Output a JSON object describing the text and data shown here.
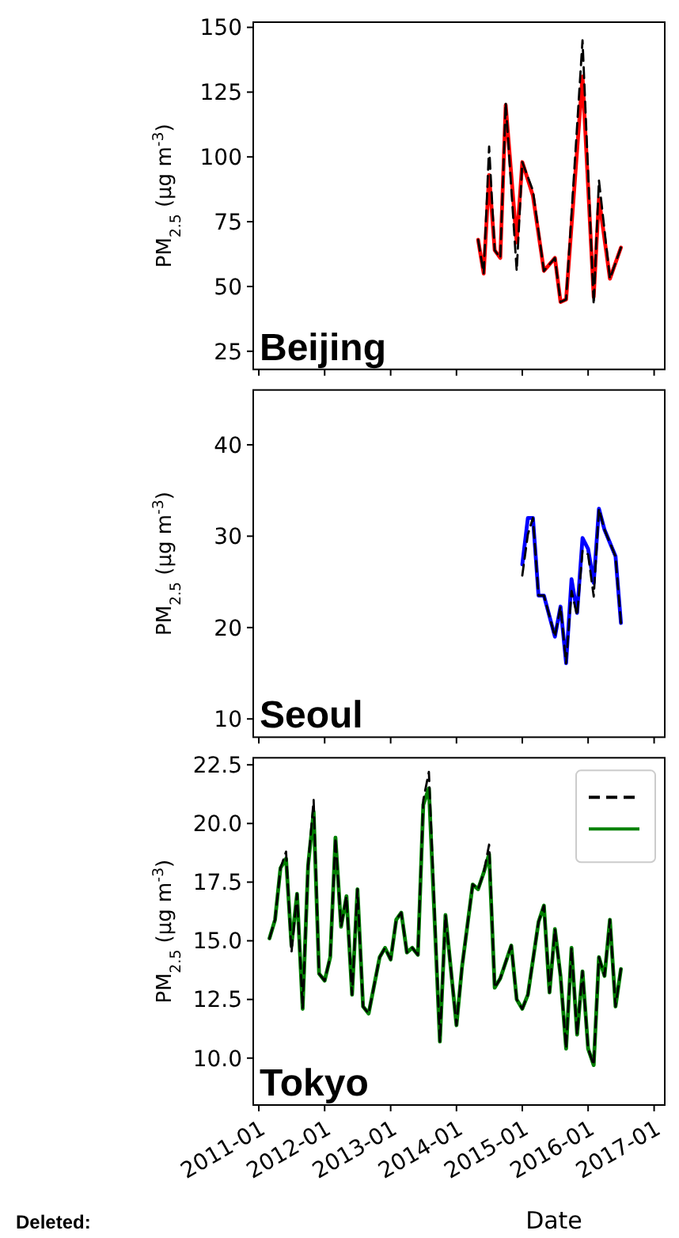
{
  "chart_data": [
    {
      "type": "line",
      "title": "Beijing",
      "ylabel": "PM$_{2.5}$ (μg m$^{-3}$)",
      "xlim": [
        "2010-12",
        "2017-03"
      ],
      "xticks": [
        "2011-01",
        "2012-01",
        "2013-01",
        "2014-01",
        "2015-01",
        "2016-01",
        "2017-01"
      ],
      "ylim": [
        18,
        152
      ],
      "yticks": [
        25,
        50,
        75,
        100,
        125,
        150
      ],
      "tick_labels": "y",
      "x": [
        "2014-05",
        "2014-06",
        "2014-07",
        "2014-08",
        "2014-09",
        "2014-10",
        "2014-12",
        "2015-01",
        "2015-03",
        "2015-05",
        "2015-07",
        "2015-08",
        "2015-09",
        "2015-12",
        "2016-02",
        "2016-03",
        "2016-05",
        "2016-07"
      ],
      "series": [
        {
          "color": "#ff0000",
          "line_style": "solid",
          "values": [
            68,
            55,
            93,
            64,
            61,
            120,
            67,
            98,
            85,
            56,
            61,
            44,
            45,
            131,
            46,
            84,
            53,
            65
          ]
        },
        {
          "color": "#000000",
          "line_style": "dashed",
          "values": [
            68,
            55,
            104,
            64,
            61,
            121,
            56,
            98,
            87,
            56,
            61,
            44,
            45,
            145,
            43,
            91,
            53,
            65
          ]
        }
      ]
    },
    {
      "type": "line",
      "title": "Seoul",
      "ylabel": "PM$_{2.5}$ (μg m$^{-3}$)",
      "xlim": [
        "2010-12",
        "2017-03"
      ],
      "xticks": [
        "2011-01",
        "2012-01",
        "2013-01",
        "2014-01",
        "2015-01",
        "2016-01",
        "2017-01"
      ],
      "ylim": [
        8,
        46
      ],
      "yticks": [
        10,
        20,
        30,
        40
      ],
      "tick_labels": "y",
      "x": [
        "2015-01",
        "2015-02",
        "2015-03",
        "2015-04",
        "2015-05",
        "2015-07",
        "2015-08",
        "2015-09",
        "2015-10",
        "2015-11",
        "2015-12",
        "2016-01",
        "2016-02",
        "2016-03",
        "2016-04",
        "2016-06",
        "2016-07"
      ],
      "series": [
        {
          "color": "#0000ff",
          "line_style": "solid",
          "values": [
            26.9,
            32.0,
            32.0,
            23.5,
            23.5,
            19.0,
            22.3,
            16.1,
            25.3,
            21.6,
            29.8,
            28.6,
            24.9,
            33.0,
            30.7,
            27.8,
            20.5
          ]
        },
        {
          "color": "#000000",
          "line_style": "dashed",
          "values": [
            25.7,
            30.2,
            32.0,
            23.5,
            23.5,
            19.0,
            22.3,
            16.1,
            24.0,
            21.3,
            28.4,
            28.0,
            23.4,
            33.0,
            30.7,
            27.8,
            20.5
          ]
        }
      ]
    },
    {
      "type": "line",
      "title": "Tokyo",
      "xlabel": "Date",
      "ylabel": "PM$_{2.5}$ (μg m$^{-3}$)",
      "annotations": [
        "Deleted:"
      ],
      "xlim": [
        "2010-12",
        "2017-03"
      ],
      "xticks": [
        "2011-01",
        "2012-01",
        "2013-01",
        "2014-01",
        "2015-01",
        "2016-01",
        "2017-01"
      ],
      "ylim": [
        8,
        22.8
      ],
      "yticks": [
        {
          "value": 10,
          "label": "10.0"
        },
        {
          "value": 12.5,
          "label": "12.5"
        },
        {
          "value": 15,
          "label": "15.0"
        },
        {
          "value": 17.5,
          "label": "17.5"
        },
        {
          "value": 20,
          "label": "20.0"
        },
        {
          "value": 22.5,
          "label": "22.5"
        }
      ],
      "x": [
        "2011-03",
        "2011-04",
        "2011-05",
        "2011-06",
        "2011-07",
        "2011-08",
        "2011-09",
        "2011-10",
        "2011-11",
        "2011-12",
        "2012-01",
        "2012-02",
        "2012-03",
        "2012-04",
        "2012-05",
        "2012-06",
        "2012-07",
        "2012-08",
        "2012-09",
        "2012-11",
        "2012-12",
        "2013-01",
        "2013-02",
        "2013-03",
        "2013-04",
        "2013-05",
        "2013-06",
        "2013-07",
        "2013-08",
        "2013-10",
        "2013-11",
        "2014-01",
        "2014-02",
        "2014-04",
        "2014-05",
        "2014-06",
        "2014-07",
        "2014-08",
        "2014-09",
        "2014-11",
        "2014-12",
        "2015-01",
        "2015-02",
        "2015-04",
        "2015-05",
        "2015-06",
        "2015-07",
        "2015-08",
        "2015-09",
        "2015-10",
        "2015-11",
        "2015-12",
        "2016-01",
        "2016-02",
        "2016-03",
        "2016-04",
        "2016-05",
        "2016-06",
        "2016-07"
      ],
      "series": [
        {
          "color": "#008000",
          "line_style": "solid",
          "values": [
            15.1,
            15.9,
            18.1,
            18.5,
            14.8,
            17.0,
            12.1,
            18.2,
            20.5,
            13.6,
            13.3,
            14.3,
            19.4,
            15.6,
            16.9,
            12.7,
            17.2,
            12.2,
            11.9,
            14.3,
            14.7,
            14.2,
            15.9,
            16.2,
            14.5,
            14.7,
            14.4,
            20.8,
            21.5,
            10.7,
            16.1,
            11.4,
            13.9,
            17.4,
            17.2,
            17.9,
            18.7,
            13.0,
            13.4,
            14.8,
            12.5,
            12.1,
            12.7,
            15.8,
            16.5,
            12.8,
            15.5,
            13.5,
            10.4,
            14.7,
            11.0,
            13.7,
            10.4,
            9.7,
            14.3,
            13.5,
            15.9,
            12.2,
            13.8
          ]
        },
        {
          "color": "#000000",
          "line_style": "dashed",
          "values": [
            15.1,
            15.9,
            18.1,
            18.8,
            14.5,
            17.0,
            12.1,
            18.2,
            21.0,
            13.6,
            13.3,
            14.3,
            19.4,
            15.6,
            16.9,
            12.7,
            17.2,
            12.2,
            11.9,
            14.3,
            14.7,
            14.2,
            15.9,
            16.2,
            14.5,
            14.7,
            14.4,
            21.0,
            22.2,
            10.7,
            16.1,
            11.4,
            13.9,
            17.4,
            17.2,
            17.9,
            19.1,
            13.0,
            13.4,
            14.8,
            12.5,
            12.1,
            12.7,
            15.8,
            16.5,
            12.8,
            15.5,
            13.5,
            10.4,
            14.7,
            11.0,
            13.7,
            10.4,
            9.7,
            14.3,
            13.5,
            15.9,
            12.2,
            13.8
          ]
        }
      ]
    }
  ]
}
